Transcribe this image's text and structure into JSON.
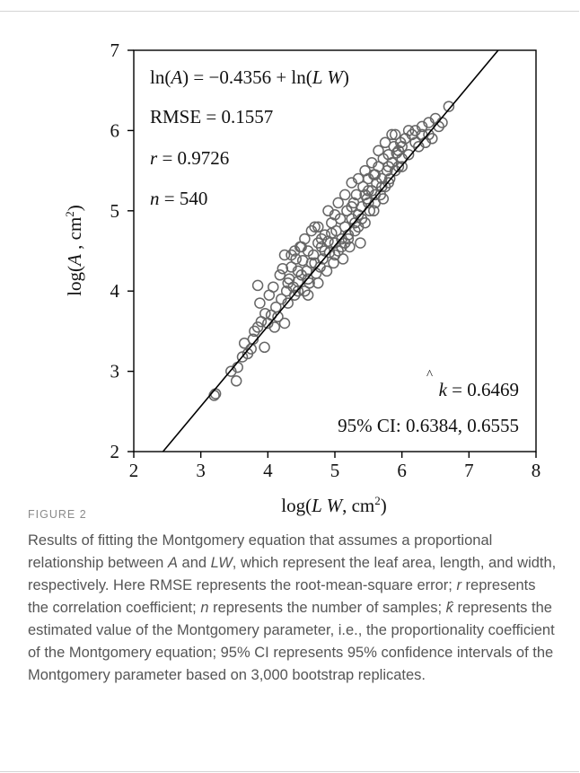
{
  "chart_data": {
    "type": "scatter",
    "x_ticks": [
      "2",
      "3",
      "4",
      "5",
      "6",
      "7",
      "8"
    ],
    "y_ticks": [
      "2",
      "3",
      "4",
      "5",
      "6",
      "7"
    ],
    "xlim": [
      2,
      8
    ],
    "ylim": [
      2,
      7
    ],
    "xlabel": {
      "pre": "log(",
      "var": "L W",
      "post": ", cm",
      "sup": "2",
      "end": ")"
    },
    "ylabel": {
      "pre": "log(",
      "var": "A",
      "post": " , cm",
      "sup": "2",
      "end": ")"
    },
    "annotations": {
      "equation": {
        "a": "ln(",
        "b": "A",
        "c": ") = −0.4356 + ln(",
        "d": "L W",
        "e": ")"
      },
      "rmse": "RMSE = 0.1557",
      "r": {
        "var": "r",
        "rest": " = 0.9726"
      },
      "n": {
        "var": "n",
        "rest": " = 540"
      },
      "khat": {
        "var": "k",
        "hat": "^",
        "rest": " = 0.6469"
      },
      "ci": "95% CI: 0.6384, 0.6555"
    },
    "fit_line": {
      "intercept": -0.4356,
      "slope": 1
    },
    "points": [
      [
        3.2,
        2.7
      ],
      [
        3.22,
        2.72
      ],
      [
        3.45,
        3.0
      ],
      [
        3.53,
        2.88
      ],
      [
        3.55,
        3.05
      ],
      [
        3.62,
        3.18
      ],
      [
        3.65,
        3.35
      ],
      [
        3.7,
        3.22
      ],
      [
        3.75,
        3.28
      ],
      [
        3.78,
        3.4
      ],
      [
        3.8,
        3.5
      ],
      [
        3.85,
        3.55
      ],
      [
        3.9,
        3.62
      ],
      [
        3.95,
        3.3
      ],
      [
        3.85,
        4.07
      ],
      [
        3.88,
        3.85
      ],
      [
        3.96,
        3.72
      ],
      [
        4.0,
        3.6
      ],
      [
        4.02,
        3.95
      ],
      [
        4.05,
        3.7
      ],
      [
        4.08,
        4.05
      ],
      [
        4.12,
        3.8
      ],
      [
        4.15,
        3.68
      ],
      [
        4.18,
        4.2
      ],
      [
        4.2,
        3.9
      ],
      [
        4.22,
        4.28
      ],
      [
        4.25,
        3.6
      ],
      [
        4.28,
        4.0
      ],
      [
        4.3,
        3.85
      ],
      [
        4.32,
        4.15
      ],
      [
        4.35,
        4.3
      ],
      [
        4.38,
        4.05
      ],
      [
        4.4,
        3.95
      ],
      [
        4.42,
        4.4
      ],
      [
        4.45,
        4.12
      ],
      [
        4.48,
        4.55
      ],
      [
        4.5,
        4.2
      ],
      [
        4.52,
        4.38
      ],
      [
        4.55,
        4.0
      ],
      [
        4.58,
        4.25
      ],
      [
        4.6,
        4.5
      ],
      [
        4.62,
        4.1
      ],
      [
        4.65,
        4.35
      ],
      [
        4.68,
        4.45
      ],
      [
        4.7,
        4.8
      ],
      [
        4.72,
        4.22
      ],
      [
        4.75,
        4.6
      ],
      [
        4.78,
        4.3
      ],
      [
        4.8,
        4.55
      ],
      [
        4.82,
        4.4
      ],
      [
        4.85,
        4.7
      ],
      [
        4.88,
        4.25
      ],
      [
        4.9,
        4.62
      ],
      [
        4.92,
        4.48
      ],
      [
        4.95,
        4.85
      ],
      [
        4.98,
        4.35
      ],
      [
        5.0,
        4.6
      ],
      [
        5.02,
        4.75
      ],
      [
        5.05,
        4.5
      ],
      [
        5.08,
        4.9
      ],
      [
        5.1,
        4.65
      ],
      [
        5.12,
        4.4
      ],
      [
        5.15,
        4.8
      ],
      [
        5.18,
        5.0
      ],
      [
        5.2,
        4.7
      ],
      [
        5.22,
        4.55
      ],
      [
        5.25,
        4.9
      ],
      [
        5.28,
        5.1
      ],
      [
        5.3,
        4.75
      ],
      [
        5.32,
        5.2
      ],
      [
        5.35,
        4.95
      ],
      [
        5.38,
        4.6
      ],
      [
        5.4,
        5.05
      ],
      [
        5.42,
        5.3
      ],
      [
        5.45,
        4.85
      ],
      [
        5.48,
        5.15
      ],
      [
        5.5,
        5.4
      ],
      [
        5.52,
        5.0
      ],
      [
        5.55,
        5.25
      ],
      [
        5.58,
        5.45
      ],
      [
        5.6,
        5.1
      ],
      [
        5.62,
        5.35
      ],
      [
        5.65,
        5.55
      ],
      [
        5.68,
        5.2
      ],
      [
        5.7,
        5.4
      ],
      [
        5.72,
        5.65
      ],
      [
        5.75,
        5.3
      ],
      [
        5.78,
        5.5
      ],
      [
        5.8,
        5.7
      ],
      [
        5.82,
        5.4
      ],
      [
        5.85,
        5.6
      ],
      [
        5.88,
        5.8
      ],
      [
        5.9,
        5.5
      ],
      [
        5.92,
        5.72
      ],
      [
        5.95,
        5.55
      ],
      [
        5.98,
        5.85
      ],
      [
        6.0,
        5.65
      ],
      [
        6.05,
        5.9
      ],
      [
        6.1,
        5.7
      ],
      [
        6.15,
        5.95
      ],
      [
        6.2,
        6.0
      ],
      [
        6.25,
        5.8
      ],
      [
        6.3,
        6.05
      ],
      [
        6.35,
        5.85
      ],
      [
        6.4,
        6.1
      ],
      [
        6.45,
        5.9
      ],
      [
        6.5,
        6.15
      ],
      [
        6.55,
        6.05
      ],
      [
        6.6,
        6.1
      ],
      [
        6.7,
        6.3
      ],
      [
        4.1,
        3.55
      ],
      [
        4.3,
        4.1
      ],
      [
        4.45,
        4.0
      ],
      [
        4.6,
        4.15
      ],
      [
        4.7,
        4.35
      ],
      [
        4.85,
        4.5
      ],
      [
        5.0,
        4.45
      ],
      [
        5.1,
        4.55
      ],
      [
        5.2,
        4.65
      ],
      [
        5.3,
        4.85
      ],
      [
        5.4,
        4.9
      ],
      [
        5.5,
        5.1
      ],
      [
        5.6,
        5.2
      ],
      [
        5.7,
        5.3
      ],
      [
        5.8,
        5.35
      ],
      [
        4.4,
        4.5
      ],
      [
        4.55,
        4.65
      ],
      [
        4.65,
        4.75
      ],
      [
        4.75,
        4.8
      ],
      [
        4.9,
        5.0
      ],
      [
        5.05,
        5.1
      ],
      [
        5.15,
        5.2
      ],
      [
        5.25,
        5.35
      ],
      [
        5.35,
        5.4
      ],
      [
        5.45,
        5.5
      ],
      [
        5.55,
        5.6
      ],
      [
        5.65,
        5.75
      ],
      [
        5.75,
        5.85
      ],
      [
        5.85,
        5.95
      ],
      [
        6.0,
        5.55
      ],
      [
        4.25,
        4.45
      ],
      [
        4.5,
        4.55
      ],
      [
        4.95,
        4.72
      ],
      [
        5.15,
        4.6
      ],
      [
        5.35,
        4.8
      ],
      [
        5.5,
        5.25
      ],
      [
        5.9,
        5.95
      ],
      [
        6.3,
        5.95
      ],
      [
        4.75,
        4.1
      ],
      [
        4.6,
        3.95
      ],
      [
        5.0,
        4.95
      ],
      [
        5.25,
        5.05
      ],
      [
        5.45,
        5.2
      ],
      [
        5.6,
        5.45
      ],
      [
        5.8,
        5.55
      ],
      [
        6.0,
        5.8
      ],
      [
        6.2,
        5.85
      ],
      [
        4.8,
        4.65
      ],
      [
        4.45,
        4.25
      ],
      [
        4.35,
        4.45
      ],
      [
        5.58,
        5.0
      ],
      [
        5.72,
        5.15
      ],
      [
        5.95,
        5.75
      ],
      [
        6.1,
        6.0
      ],
      [
        6.4,
        5.95
      ]
    ]
  },
  "caption": {
    "label": "FIGURE 2",
    "parts": [
      "Results of fitting the Montgomery equation that assumes a proportional relationship between ",
      "A",
      " and ",
      "LW",
      ", which represent the leaf area, length, and width, respectively. Here RMSE represents the root-mean-square error; ",
      "r",
      " represents the correlation coefficient; ",
      "n",
      " represents the number of samples; ",
      "k̂",
      " represents the estimated value of the Montgomery parameter, i.e., the proportionality coefficient of the Montgomery equation; 95% CI represents 95% confidence intervals of the Montgomery parameter based on 3,000 bootstrap replicates."
    ]
  }
}
